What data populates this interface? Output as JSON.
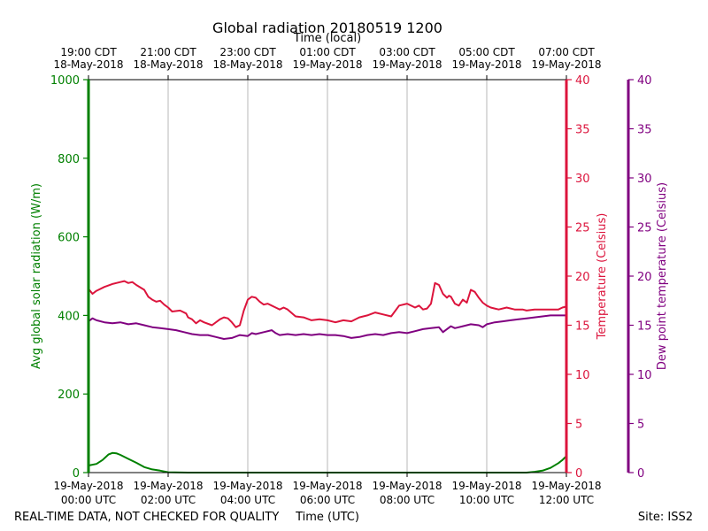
{
  "chart_data": {
    "type": "line",
    "title": "Global radiation 20180519 1200",
    "top_axis_label": "Time (local)",
    "xlabel": "Time (UTC)",
    "footer_left": "REAL-TIME DATA, NOT CHECKED FOR QUALITY",
    "footer_right": "Site: ISS2",
    "x_range_hours": [
      0,
      12
    ],
    "bottom_ticks": [
      {
        "hour": 0,
        "line1": "19-May-2018",
        "line2": "00:00 UTC"
      },
      {
        "hour": 2,
        "line1": "19-May-2018",
        "line2": "02:00 UTC"
      },
      {
        "hour": 4,
        "line1": "19-May-2018",
        "line2": "04:00 UTC"
      },
      {
        "hour": 6,
        "line1": "19-May-2018",
        "line2": "06:00 UTC"
      },
      {
        "hour": 8,
        "line1": "19-May-2018",
        "line2": "08:00 UTC"
      },
      {
        "hour": 10,
        "line1": "19-May-2018",
        "line2": "10:00 UTC"
      },
      {
        "hour": 12,
        "line1": "19-May-2018",
        "line2": "12:00 UTC"
      }
    ],
    "top_ticks": [
      {
        "hour": 0,
        "line1": "19:00 CDT",
        "line2": "18-May-2018"
      },
      {
        "hour": 2,
        "line1": "21:00 CDT",
        "line2": "18-May-2018"
      },
      {
        "hour": 4,
        "line1": "23:00 CDT",
        "line2": "18-May-2018"
      },
      {
        "hour": 6,
        "line1": "01:00 CDT",
        "line2": "19-May-2018"
      },
      {
        "hour": 8,
        "line1": "03:00 CDT",
        "line2": "19-May-2018"
      },
      {
        "hour": 10,
        "line1": "05:00 CDT",
        "line2": "19-May-2018"
      },
      {
        "hour": 12,
        "line1": "07:00 CDT",
        "line2": "19-May-2018"
      }
    ],
    "axes": {
      "radiation": {
        "label": "Avg global solar radiation (W/m)",
        "ylim": [
          0,
          1000
        ],
        "ticks": [
          "0",
          "200",
          "400",
          "600",
          "800",
          "1000"
        ],
        "color": "#008000"
      },
      "temperature": {
        "label": "Temperature (Celsius)",
        "ylim": [
          0,
          40
        ],
        "ticks": [
          "0",
          "5",
          "10",
          "15",
          "20",
          "25",
          "30",
          "35",
          "40"
        ],
        "color": "#dc143c"
      },
      "dewpoint": {
        "label": "Dew point temperature (Celsius)",
        "ylim": [
          0,
          40
        ],
        "ticks": [
          "0",
          "5",
          "10",
          "15",
          "20",
          "25",
          "30",
          "35",
          "40"
        ],
        "color": "#800080"
      }
    },
    "series": [
      {
        "name": "Avg global solar radiation",
        "axis": "radiation",
        "color": "#008000",
        "x": [
          0,
          0.2,
          0.35,
          0.5,
          0.6,
          0.7,
          0.8,
          1.0,
          1.2,
          1.4,
          1.6,
          1.8,
          2.0,
          2.5,
          11.0,
          11.2,
          11.4,
          11.6,
          11.8,
          11.9,
          12.0
        ],
        "y": [
          18,
          22,
          32,
          46,
          50,
          49,
          45,
          35,
          25,
          14,
          8,
          5,
          1,
          0,
          0,
          2,
          5,
          12,
          24,
          32,
          42
        ]
      },
      {
        "name": "Temperature",
        "axis": "temperature",
        "color": "#dc143c",
        "x": [
          0,
          0.1,
          0.2,
          0.4,
          0.6,
          0.8,
          0.9,
          1.0,
          1.1,
          1.2,
          1.4,
          1.5,
          1.6,
          1.7,
          1.8,
          1.9,
          2.0,
          2.1,
          2.3,
          2.45,
          2.5,
          2.6,
          2.7,
          2.8,
          2.9,
          3.1,
          3.3,
          3.4,
          3.5,
          3.6,
          3.7,
          3.8,
          3.9,
          4.0,
          4.1,
          4.2,
          4.3,
          4.4,
          4.5,
          4.6,
          4.7,
          4.8,
          4.9,
          5.0,
          5.2,
          5.4,
          5.6,
          5.8,
          6.0,
          6.2,
          6.4,
          6.6,
          6.8,
          7.0,
          7.2,
          7.4,
          7.6,
          7.8,
          8.0,
          8.2,
          8.3,
          8.4,
          8.5,
          8.6,
          8.7,
          8.8,
          8.9,
          9.0,
          9.05,
          9.1,
          9.2,
          9.3,
          9.4,
          9.5,
          9.6,
          9.7,
          9.8,
          9.9,
          10.0,
          10.1,
          10.2,
          10.3,
          10.5,
          10.7,
          10.9,
          11.0,
          11.2,
          11.4,
          11.6,
          11.8,
          11.9,
          12.0
        ],
        "y": [
          18.7,
          18.2,
          18.5,
          18.9,
          19.2,
          19.4,
          19.5,
          19.3,
          19.4,
          19.1,
          18.6,
          17.9,
          17.6,
          17.4,
          17.5,
          17.1,
          16.8,
          16.4,
          16.5,
          16.2,
          15.8,
          15.6,
          15.2,
          15.5,
          15.3,
          15.0,
          15.6,
          15.8,
          15.7,
          15.3,
          14.8,
          15.0,
          16.5,
          17.6,
          17.9,
          17.8,
          17.4,
          17.1,
          17.2,
          17.0,
          16.8,
          16.6,
          16.8,
          16.6,
          15.9,
          15.8,
          15.5,
          15.6,
          15.5,
          15.3,
          15.5,
          15.4,
          15.8,
          16.0,
          16.3,
          16.1,
          15.9,
          17.0,
          17.2,
          16.8,
          17.0,
          16.6,
          16.7,
          17.2,
          19.3,
          19.1,
          18.2,
          17.8,
          18.0,
          17.9,
          17.2,
          17.0,
          17.6,
          17.3,
          18.6,
          18.4,
          17.8,
          17.3,
          17.0,
          16.8,
          16.7,
          16.6,
          16.8,
          16.6,
          16.6,
          16.5,
          16.6,
          16.6,
          16.6,
          16.6,
          16.8,
          16.9
        ]
      },
      {
        "name": "Dew point temperature",
        "axis": "dewpoint",
        "color": "#800080",
        "x": [
          0,
          0.1,
          0.2,
          0.4,
          0.6,
          0.8,
          1.0,
          1.2,
          1.4,
          1.6,
          1.8,
          2.0,
          2.2,
          2.4,
          2.6,
          2.8,
          3.0,
          3.2,
          3.4,
          3.6,
          3.8,
          4.0,
          4.1,
          4.2,
          4.4,
          4.6,
          4.7,
          4.8,
          5.0,
          5.2,
          5.4,
          5.6,
          5.8,
          6.0,
          6.2,
          6.4,
          6.6,
          6.8,
          7.0,
          7.2,
          7.4,
          7.6,
          7.8,
          8.0,
          8.2,
          8.4,
          8.6,
          8.8,
          8.9,
          9.0,
          9.1,
          9.2,
          9.4,
          9.6,
          9.8,
          9.9,
          10.0,
          10.1,
          10.2,
          10.4,
          10.6,
          10.8,
          11.0,
          11.2,
          11.4,
          11.6,
          11.8,
          12.0
        ],
        "y": [
          15.4,
          15.7,
          15.5,
          15.3,
          15.2,
          15.3,
          15.1,
          15.2,
          15.0,
          14.8,
          14.7,
          14.6,
          14.5,
          14.3,
          14.1,
          14.0,
          14.0,
          13.8,
          13.6,
          13.7,
          14.0,
          13.9,
          14.2,
          14.1,
          14.3,
          14.5,
          14.2,
          14.0,
          14.1,
          14.0,
          14.1,
          14.0,
          14.1,
          14.0,
          14.0,
          13.9,
          13.7,
          13.8,
          14.0,
          14.1,
          14.0,
          14.2,
          14.3,
          14.2,
          14.4,
          14.6,
          14.7,
          14.8,
          14.3,
          14.6,
          14.9,
          14.7,
          14.9,
          15.1,
          15.0,
          14.8,
          15.1,
          15.2,
          15.3,
          15.4,
          15.5,
          15.6,
          15.7,
          15.8,
          15.9,
          16.0,
          16.0,
          16.0
        ]
      }
    ]
  }
}
